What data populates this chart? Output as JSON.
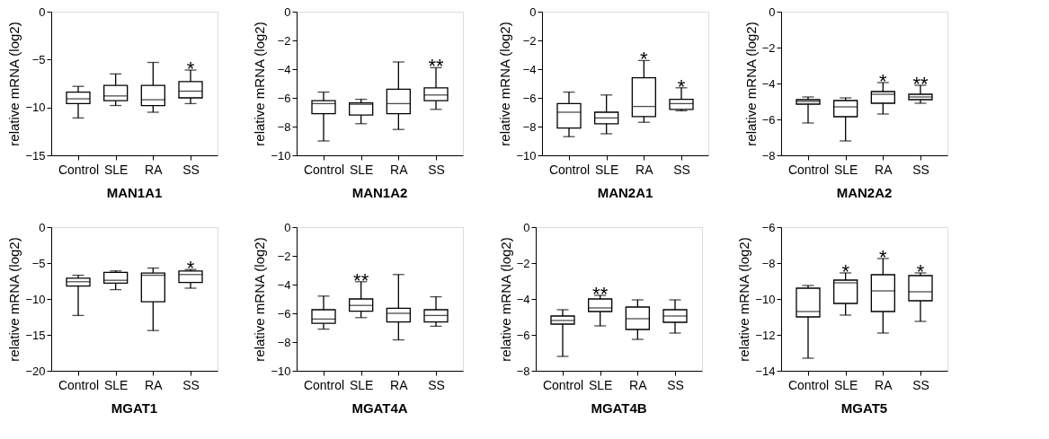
{
  "chart_data": [
    {
      "type": "box",
      "title": "MAN1A1",
      "ylabel": "relative mRNA (log2)",
      "categories": [
        "Control",
        "SLE",
        "RA",
        "SS"
      ],
      "ylim": [
        -15,
        0
      ],
      "yticks": [
        -15,
        -10,
        -5,
        0
      ],
      "boxes": [
        {
          "low": -11.1,
          "q1": -9.6,
          "median": -9.1,
          "q3": -8.4,
          "high": -7.8
        },
        {
          "low": -9.8,
          "q1": -9.3,
          "median": -8.8,
          "q3": -7.7,
          "high": -6.5
        },
        {
          "low": -10.5,
          "q1": -9.8,
          "median": -9.2,
          "q3": -7.7,
          "high": -5.3
        },
        {
          "low": -9.6,
          "q1": -9.0,
          "median": -8.3,
          "q3": -7.3,
          "high": -6.1
        }
      ],
      "annotations": [
        {
          "text": "*",
          "x": "SS",
          "y": -6.1
        }
      ]
    },
    {
      "type": "box",
      "title": "MAN1A2",
      "ylabel": "relative mRNA (log2)",
      "categories": [
        "Control",
        "SLE",
        "RA",
        "SS"
      ],
      "ylim": [
        -10,
        0
      ],
      "yticks": [
        -10,
        -8,
        -6,
        -4,
        -2,
        0
      ],
      "boxes": [
        {
          "low": -9.0,
          "q1": -7.1,
          "median": -6.4,
          "q3": -6.2,
          "high": -5.6
        },
        {
          "low": -7.8,
          "q1": -7.2,
          "median": -6.45,
          "q3": -6.35,
          "high": -6.1
        },
        {
          "low": -8.2,
          "q1": -7.1,
          "median": -6.4,
          "q3": -5.4,
          "high": -3.5
        },
        {
          "low": -6.8,
          "q1": -6.2,
          "median": -5.8,
          "q3": -5.3,
          "high": -3.9
        }
      ],
      "annotations": [
        {
          "text": "**",
          "x": "SS",
          "y": -3.9
        }
      ]
    },
    {
      "type": "box",
      "title": "MAN2A1",
      "ylabel": "relative mRNA (log2)",
      "categories": [
        "Control",
        "SLE",
        "RA",
        "SS"
      ],
      "ylim": [
        -10,
        0
      ],
      "yticks": [
        -10,
        -8,
        -6,
        -4,
        -2,
        0
      ],
      "boxes": [
        {
          "low": -8.7,
          "q1": -8.1,
          "median": -7.0,
          "q3": -6.4,
          "high": -5.6
        },
        {
          "low": -8.5,
          "q1": -7.8,
          "median": -7.4,
          "q3": -7.0,
          "high": -5.8
        },
        {
          "low": -7.7,
          "q1": -7.3,
          "median": -6.6,
          "q3": -4.6,
          "high": -3.4
        },
        {
          "low": -6.9,
          "q1": -6.8,
          "median": -6.4,
          "q3": -6.1,
          "high": -5.3
        }
      ],
      "annotations": [
        {
          "text": "*",
          "x": "RA",
          "y": -3.4
        },
        {
          "text": "*",
          "x": "SS",
          "y": -5.3
        }
      ]
    },
    {
      "type": "box",
      "title": "MAN2A2",
      "ylabel": "relative mRNA (log2)",
      "categories": [
        "Control",
        "SLE",
        "RA",
        "SS"
      ],
      "ylim": [
        -8,
        0
      ],
      "yticks": [
        -8,
        -6,
        -4,
        -2,
        0
      ],
      "boxes": [
        {
          "low": -6.2,
          "q1": -5.15,
          "median": -5.0,
          "q3": -4.9,
          "high": -4.75
        },
        {
          "low": -7.2,
          "q1": -5.85,
          "median": -5.3,
          "q3": -4.95,
          "high": -4.8
        },
        {
          "low": -5.7,
          "q1": -5.1,
          "median": -4.6,
          "q3": -4.45,
          "high": -3.95
        },
        {
          "low": -5.1,
          "q1": -4.9,
          "median": -4.75,
          "q3": -4.6,
          "high": -4.1
        }
      ],
      "annotations": [
        {
          "text": "*",
          "x": "RA",
          "y": -3.95
        },
        {
          "text": "**",
          "x": "SS",
          "y": -4.1
        }
      ]
    },
    {
      "type": "box",
      "title": "MGAT1",
      "ylabel": "relative mRNA (log2)",
      "categories": [
        "Control",
        "SLE",
        "RA",
        "SS"
      ],
      "ylim": [
        -20,
        0
      ],
      "yticks": [
        -20,
        -15,
        -10,
        -5,
        0
      ],
      "boxes": [
        {
          "low": -12.3,
          "q1": -8.2,
          "median": -7.6,
          "q3": -7.1,
          "high": -6.7
        },
        {
          "low": -8.7,
          "q1": -7.8,
          "median": -7.4,
          "q3": -6.3,
          "high": -6.1
        },
        {
          "low": -14.4,
          "q1": -10.4,
          "median": -6.7,
          "q3": -6.4,
          "high": -5.7
        },
        {
          "low": -8.5,
          "q1": -7.7,
          "median": -6.6,
          "q3": -6.1,
          "high": -5.9
        }
      ],
      "annotations": [
        {
          "text": "*",
          "x": "SS",
          "y": -5.9
        }
      ]
    },
    {
      "type": "box",
      "title": "MGAT4A",
      "ylabel": "relative mRNA (log2)",
      "categories": [
        "Control",
        "SLE",
        "RA",
        "SS"
      ],
      "ylim": [
        -10,
        0
      ],
      "yticks": [
        -10,
        -8,
        -6,
        -4,
        -2,
        0
      ],
      "boxes": [
        {
          "low": -7.1,
          "q1": -6.7,
          "median": -6.4,
          "q3": -5.75,
          "high": -4.8
        },
        {
          "low": -6.3,
          "q1": -5.85,
          "median": -5.45,
          "q3": -5.0,
          "high": -3.8
        },
        {
          "low": -7.85,
          "q1": -6.6,
          "median": -6.0,
          "q3": -5.65,
          "high": -3.3
        },
        {
          "low": -6.9,
          "q1": -6.6,
          "median": -6.15,
          "q3": -5.75,
          "high": -4.85
        }
      ],
      "annotations": [
        {
          "text": "**",
          "x": "SLE",
          "y": -3.8
        }
      ]
    },
    {
      "type": "box",
      "title": "MGAT4B",
      "ylabel": "relative mRNA (log2)",
      "categories": [
        "Control",
        "SLE",
        "RA",
        "SS"
      ],
      "ylim": [
        -8,
        0
      ],
      "yticks": [
        -8,
        -6,
        -4,
        -2,
        0
      ],
      "boxes": [
        {
          "low": -7.2,
          "q1": -5.4,
          "median": -5.2,
          "q3": -4.95,
          "high": -4.6
        },
        {
          "low": -5.5,
          "q1": -4.7,
          "median": -4.5,
          "q3": -4.0,
          "high": -3.8
        },
        {
          "low": -6.25,
          "q1": -5.7,
          "median": -5.1,
          "q3": -4.45,
          "high": -4.05
        },
        {
          "low": -5.9,
          "q1": -5.3,
          "median": -4.95,
          "q3": -4.6,
          "high": -4.05
        }
      ],
      "annotations": [
        {
          "text": "**",
          "x": "SLE",
          "y": -3.8
        }
      ]
    },
    {
      "type": "box",
      "title": "MGAT5",
      "ylabel": "relative mRNA (log2)",
      "categories": [
        "Control",
        "SLE",
        "RA",
        "SS"
      ],
      "ylim": [
        -14,
        -6
      ],
      "yticks": [
        -14,
        -12,
        -10,
        -8,
        -6
      ],
      "boxes": [
        {
          "low": -13.3,
          "q1": -11.0,
          "median": -10.7,
          "q3": -9.4,
          "high": -9.25
        },
        {
          "low": -10.9,
          "q1": -10.25,
          "median": -9.1,
          "q3": -8.95,
          "high": -8.55
        },
        {
          "low": -11.9,
          "q1": -10.7,
          "median": -9.55,
          "q3": -8.65,
          "high": -7.75
        },
        {
          "low": -11.25,
          "q1": -10.1,
          "median": -9.6,
          "q3": -8.7,
          "high": -8.55
        }
      ],
      "annotations": [
        {
          "text": "*",
          "x": "SLE",
          "y": -8.55
        },
        {
          "text": "*",
          "x": "RA",
          "y": -7.75
        },
        {
          "text": "*",
          "x": "SS",
          "y": -8.55
        }
      ]
    }
  ]
}
